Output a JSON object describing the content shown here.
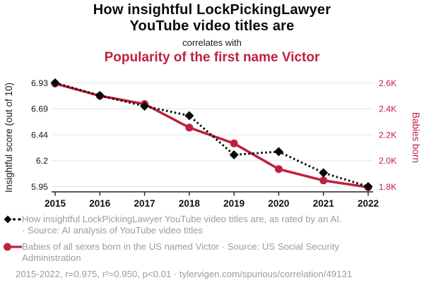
{
  "header": {
    "title_line1": "How insightful LockPickingLawyer",
    "title_line2": "YouTube video titles are",
    "connector": "correlates with",
    "subtitle": "Popularity of the first name Victor"
  },
  "colors": {
    "accent_red": "#c0203e",
    "series_black": "#0a0a0a",
    "legend_gray": "#9c9c9c",
    "gridline": "#e9e9e9",
    "axis": "#222222",
    "x_label": "#111111",
    "left_tick": "#1a1a1a"
  },
  "chart_data": {
    "type": "line",
    "x": [
      2015,
      2016,
      2017,
      2018,
      2019,
      2020,
      2021,
      2022
    ],
    "x_tick_labels": [
      "2015",
      "2016",
      "2017",
      "2018",
      "2019",
      "2020",
      "2021",
      "2022"
    ],
    "series": [
      {
        "name": "Insightful score",
        "axis": "left",
        "style": "dotted-diamond",
        "color": "#0a0a0a",
        "values": [
          6.93,
          6.81,
          6.71,
          6.62,
          6.25,
          6.28,
          6.08,
          5.95
        ]
      },
      {
        "name": "Babies born named Victor",
        "axis": "right",
        "style": "solid-circle",
        "color": "#c0203e",
        "values": [
          2595,
          2500,
          2437,
          2255,
          2133,
          1935,
          1847,
          1795
        ]
      }
    ],
    "left_axis": {
      "label": "Insightful score (out of 10)",
      "ticks": [
        6.93,
        6.69,
        6.44,
        6.2,
        5.95
      ],
      "tick_labels": [
        "6.93",
        "6.69",
        "6.44",
        "6.2",
        "5.95"
      ],
      "range": [
        5.95,
        6.93
      ]
    },
    "right_axis": {
      "label": "Babies born",
      "ticks": [
        2600,
        2400,
        2200,
        2000,
        1800
      ],
      "tick_labels": [
        "2.6K",
        "2.4K",
        "2.2K",
        "2.0K",
        "1.8K"
      ],
      "range": [
        1800,
        2600
      ]
    },
    "grid": "horizontal-only",
    "legend_position": "below"
  },
  "legend": {
    "items": [
      {
        "marker": "black-diamond-dotted-line",
        "lines": [
          "How insightful LockPickingLawyer YouTube video titles are, as rated by an AI.",
          "· Source: AI analysis of YouTube video titles"
        ]
      },
      {
        "marker": "red-circle-solid-line",
        "lines": [
          "Babies of all sexes born in the US named Victor · Source: US Social Security",
          "Administration"
        ]
      }
    ]
  },
  "footer": {
    "stats": "2015-2022, r=0.975, r²=0.950, p<0.01 · tylervigen.com/spurious/correlation/49131"
  }
}
